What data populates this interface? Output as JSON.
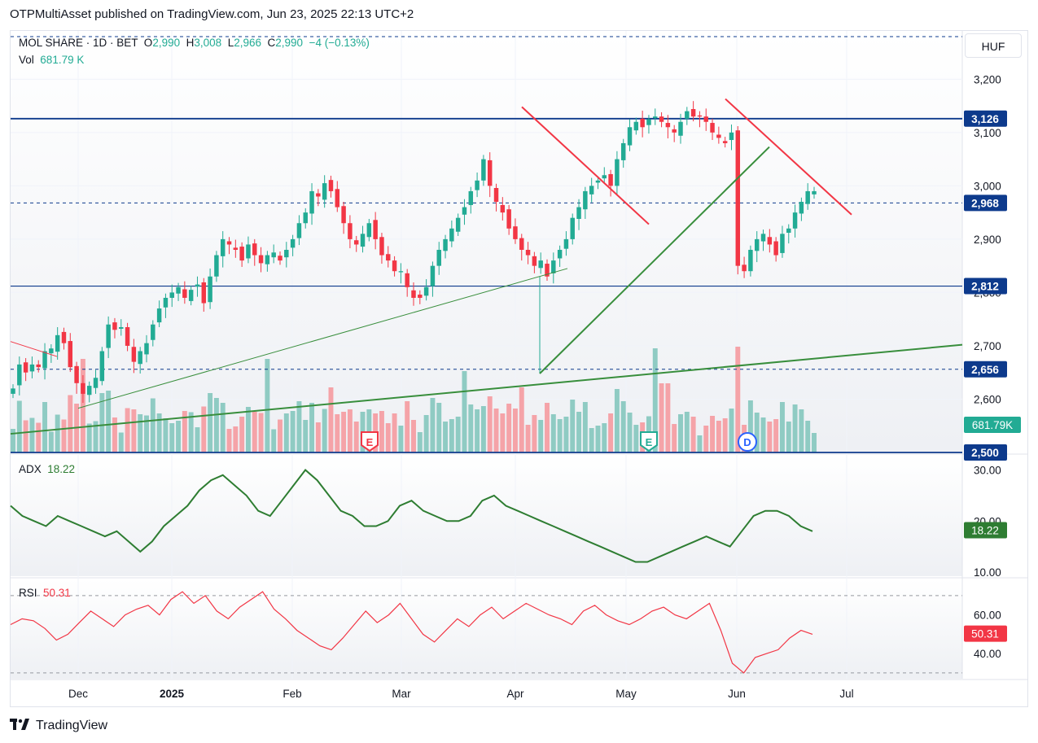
{
  "publisher": "OTPMultiAsset published on TradingView.com, Jun 23, 2025 22:13 UTC+2",
  "brand": "TradingView",
  "currency": "HUF",
  "legend": {
    "symbol": "MOL SHARE · 1D · BET",
    "o_label": "O",
    "o": "2,990",
    "h_label": "H",
    "h": "3,008",
    "l_label": "L",
    "l": "2,966",
    "c_label": "C",
    "c": "2,990",
    "change": "−4 (−0.13%)",
    "vol_label": "Vol",
    "vol": "681.79 K",
    "adx_label": "ADX",
    "adx": "18.22",
    "rsi_label": "RSI",
    "rsi": "50.31"
  },
  "colors": {
    "up": "#22ab94",
    "down": "#f23645",
    "vol_up": "#8fcbc3",
    "vol_down": "#f5a3a8",
    "level": "#0d3a8c",
    "trend_green": "#388e3c",
    "trend_red": "#f23645",
    "adx": "#2e7d32",
    "rsi": "#f23645"
  },
  "chart_data": [
    {
      "type": "candlestick",
      "series_name": "MOL SHARE",
      "x_ticks": [
        "Dec",
        "2025",
        "Feb",
        "Mar",
        "Apr",
        "May",
        "Jun",
        "Jul"
      ],
      "y_ticks": [
        2600,
        2700,
        2800,
        2900,
        3000,
        3100,
        3200
      ],
      "ylim": [
        2500,
        3260
      ],
      "price_labels": [
        {
          "value": 3126,
          "label": "3,126",
          "style": "solid"
        },
        {
          "value": 2968,
          "label": "2,968",
          "style": "dashed"
        },
        {
          "value": 2812,
          "label": "2,812",
          "style": "solid"
        },
        {
          "value": 2656,
          "label": "2,656",
          "style": "dashed"
        },
        {
          "value": 2500,
          "label": "2,500",
          "style": "solid"
        }
      ],
      "ohlc_close": [
        2620,
        2665,
        2650,
        2665,
        2660,
        2690,
        2695,
        2720,
        2705,
        2660,
        2630,
        2610,
        2625,
        2640,
        2690,
        2740,
        2730,
        2735,
        2700,
        2670,
        2690,
        2705,
        2740,
        2770,
        2790,
        2800,
        2810,
        2790,
        2805,
        2815,
        2780,
        2830,
        2870,
        2900,
        2890,
        2880,
        2860,
        2890,
        2870,
        2855,
        2870,
        2875,
        2860,
        2880,
        2900,
        2930,
        2950,
        2990,
        2980,
        3005,
        2990,
        2960,
        2930,
        2900,
        2890,
        2910,
        2930,
        2900,
        2870,
        2860,
        2840,
        2840,
        2810,
        2790,
        2790,
        2810,
        2850,
        2880,
        2900,
        2920,
        2940,
        2960,
        2990,
        3010,
        3050,
        3000,
        2970,
        2950,
        2920,
        2900,
        2880,
        2870,
        2850,
        2860,
        2830,
        2860,
        2880,
        2900,
        2940,
        2960,
        2990,
        3000,
        3010,
        3020,
        3000,
        3050,
        3080,
        3110,
        3120,
        3110,
        3125,
        3130,
        3120,
        3110,
        3100,
        3120,
        3140,
        3130,
        3130,
        3120,
        3100,
        3090,
        3080,
        3100,
        2850,
        2840,
        2880,
        2900,
        2910,
        2890,
        2870,
        2910,
        2920,
        2950,
        2970,
        2990,
        2990
      ],
      "volume_max_label": "681.79K",
      "events": [
        {
          "label": "E"
        },
        {
          "label": "E"
        },
        {
          "label": "D"
        }
      ]
    },
    {
      "type": "line",
      "series_name": "ADX",
      "y_ticks": [
        10,
        20,
        30
      ],
      "ylim": [
        10,
        32
      ],
      "values": [
        23,
        21,
        20,
        19,
        21,
        20,
        19,
        18,
        17,
        18,
        16,
        14,
        16,
        19,
        21,
        23,
        26,
        28,
        29,
        27,
        25,
        22,
        21,
        24,
        27,
        30,
        28,
        25,
        22,
        21,
        19,
        19,
        20,
        23,
        24,
        22,
        21,
        20,
        20,
        21,
        24,
        25,
        23,
        22,
        21,
        20,
        19,
        18,
        17,
        16,
        15,
        14,
        13,
        12,
        12,
        13,
        14,
        15,
        16,
        17,
        16,
        15,
        18,
        21,
        22,
        22,
        21,
        19,
        18
      ]
    },
    {
      "type": "line",
      "series_name": "RSI",
      "y_ticks": [
        40,
        60
      ],
      "ylim": [
        27,
        75
      ],
      "values": [
        55,
        58,
        57,
        53,
        47,
        50,
        56,
        62,
        58,
        54,
        60,
        63,
        65,
        60,
        68,
        72,
        66,
        70,
        62,
        58,
        64,
        68,
        72,
        63,
        58,
        52,
        48,
        44,
        42,
        48,
        55,
        62,
        56,
        60,
        66,
        58,
        50,
        46,
        52,
        58,
        54,
        60,
        64,
        58,
        62,
        66,
        63,
        60,
        58,
        55,
        62,
        65,
        60,
        57,
        55,
        58,
        62,
        64,
        60,
        58,
        62,
        66,
        52,
        35,
        30,
        38,
        40,
        42,
        48,
        52,
        50
      ]
    }
  ]
}
